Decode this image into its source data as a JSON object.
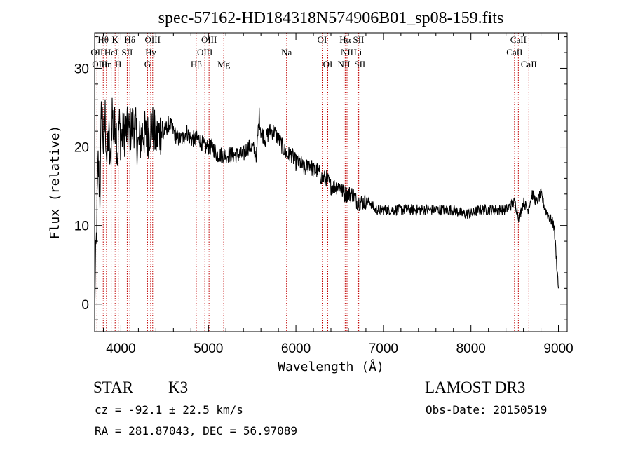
{
  "chart_data": {
    "type": "line",
    "title": "spec-57162-HD184318N574906B01_sp08-159.fits",
    "xlabel": "Wavelength (Å)",
    "ylabel": "Flux (relative)",
    "xlim": [
      3700,
      9100
    ],
    "ylim": [
      -3.5,
      34.5
    ],
    "xticks": [
      4000,
      5000,
      6000,
      7000,
      8000,
      9000
    ],
    "yticks": [
      0,
      10,
      20,
      30
    ],
    "series": [
      {
        "name": "spectrum",
        "x": [
          3700,
          3720,
          3740,
          3760,
          3780,
          3800,
          3820,
          3840,
          3860,
          3880,
          3900,
          3920,
          3940,
          3960,
          3980,
          4000,
          4050,
          4100,
          4150,
          4200,
          4250,
          4300,
          4350,
          4400,
          4450,
          4500,
          4550,
          4600,
          4650,
          4700,
          4750,
          4800,
          4850,
          4900,
          4950,
          5000,
          5050,
          5100,
          5150,
          5200,
          5250,
          5300,
          5350,
          5400,
          5450,
          5500,
          5550,
          5580,
          5600,
          5650,
          5700,
          5750,
          5800,
          5850,
          5900,
          5950,
          6000,
          6050,
          6100,
          6150,
          6200,
          6250,
          6300,
          6350,
          6400,
          6450,
          6500,
          6550,
          6600,
          6650,
          6700,
          6750,
          6800,
          6850,
          6900,
          6950,
          7000,
          7100,
          7200,
          7300,
          7400,
          7500,
          7600,
          7700,
          7800,
          7900,
          8000,
          8100,
          8200,
          8300,
          8400,
          8500,
          8550,
          8600,
          8650,
          8700,
          8750,
          8800,
          8850,
          8900,
          8950,
          9000
        ],
        "y": [
          0.5,
          8,
          18,
          14,
          26,
          20,
          24,
          18,
          22,
          17,
          25,
          21,
          24,
          19,
          23,
          21,
          22,
          22,
          23,
          20,
          22,
          21,
          23,
          21,
          22,
          22,
          23,
          22,
          21,
          21,
          22,
          21,
          21,
          21,
          20,
          20,
          20,
          19,
          19,
          19,
          19,
          19,
          19,
          19,
          20,
          20,
          19,
          24,
          22,
          21,
          22,
          22,
          21,
          20,
          19,
          19,
          18,
          18,
          17,
          18,
          17,
          17,
          16,
          16,
          15,
          15,
          15,
          14,
          14,
          14,
          13,
          13,
          13,
          13,
          12,
          12,
          12,
          12,
          12,
          12,
          12,
          12,
          12,
          12,
          12,
          11.5,
          11.5,
          12,
          12,
          12,
          12,
          13,
          11,
          13,
          12,
          14,
          13,
          14,
          12,
          11,
          10,
          2
        ]
      }
    ],
    "spectral_lines": [
      {
        "label": "Hθ",
        "wave": 3798,
        "row": 0
      },
      {
        "label": "K",
        "wave": 3934,
        "row": 0
      },
      {
        "label": "Hδ",
        "wave": 4102,
        "row": 0
      },
      {
        "label": "OIII",
        "wave": 4363,
        "row": 0
      },
      {
        "label": "OIII",
        "wave": 5007,
        "row": 0
      },
      {
        "label": "OI",
        "wave": 6300,
        "row": 0
      },
      {
        "label": "Hα",
        "wave": 6563,
        "row": 0
      },
      {
        "label": "SII",
        "wave": 6716,
        "row": 0
      },
      {
        "label": "CaII",
        "wave": 8542,
        "row": 0
      },
      {
        "label": "OII",
        "wave": 3727,
        "row": 1
      },
      {
        "label": "HeI",
        "wave": 3889,
        "row": 1
      },
      {
        "label": "SII",
        "wave": 4072,
        "row": 1
      },
      {
        "label": "Hγ",
        "wave": 4340,
        "row": 1
      },
      {
        "label": "OIII",
        "wave": 4959,
        "row": 1
      },
      {
        "label": "Na",
        "wave": 5893,
        "row": 1
      },
      {
        "label": "NII",
        "wave": 6584,
        "row": 1
      },
      {
        "label": "Li",
        "wave": 6708,
        "row": 1
      },
      {
        "label": "CaII",
        "wave": 8498,
        "row": 1
      },
      {
        "label": "OIII",
        "wave": 3760,
        "row": 2
      },
      {
        "label": "Hη",
        "wave": 3835,
        "row": 2
      },
      {
        "label": "H",
        "wave": 3970,
        "row": 2
      },
      {
        "label": "G",
        "wave": 4304,
        "row": 2
      },
      {
        "label": "Hβ",
        "wave": 4861,
        "row": 2
      },
      {
        "label": "Mg",
        "wave": 5175,
        "row": 2
      },
      {
        "label": "OI",
        "wave": 6364,
        "row": 2
      },
      {
        "label": "NII",
        "wave": 6548,
        "row": 2
      },
      {
        "label": "SII",
        "wave": 6731,
        "row": 2
      },
      {
        "label": "CaII",
        "wave": 8662,
        "row": 2
      }
    ],
    "line_color": "#000000",
    "marker_color": "#c00000"
  },
  "info": {
    "class": "STAR",
    "subclass": "K3",
    "survey": "LAMOST DR3",
    "cz": "cz = -92.1 ± 22.5 km/s",
    "obs_date": "Obs-Date: 20150519",
    "coords": "RA = 281.87043, DEC =  56.97089"
  }
}
